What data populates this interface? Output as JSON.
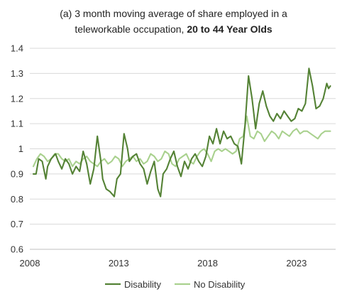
{
  "chart_data": {
    "type": "line",
    "title_line1": "(a) 3 month moving average of share employed in a",
    "title_line2_prefix": "teleworkable occupation, ",
    "title_line2_bold": "20 to 44 Year Olds",
    "xlabel": "",
    "ylabel": "",
    "xlim": [
      2008,
      2025.2
    ],
    "ylim": [
      0.6,
      1.4
    ],
    "x_ticks": [
      "2008",
      "2013",
      "2018",
      "2023"
    ],
    "y_ticks": [
      "0.6",
      "0.7",
      "0.8",
      "0.9",
      "1",
      "1.1",
      "1.2",
      "1.3",
      "1.4"
    ],
    "grid": "horizontal",
    "legend_position": "bottom",
    "series": [
      {
        "name": "Disability",
        "color": "#548235",
        "x": [
          2008.2,
          2008.35,
          2008.5,
          2008.7,
          2008.9,
          2009.0,
          2009.2,
          2009.45,
          2009.6,
          2009.8,
          2010.0,
          2010.2,
          2010.4,
          2010.6,
          2010.8,
          2011.0,
          2011.2,
          2011.4,
          2011.6,
          2011.8,
          2012.0,
          2012.1,
          2012.3,
          2012.5,
          2012.75,
          2012.9,
          2013.1,
          2013.3,
          2013.5,
          2013.6,
          2013.8,
          2014.0,
          2014.2,
          2014.4,
          2014.6,
          2014.8,
          2015.0,
          2015.2,
          2015.35,
          2015.5,
          2015.7,
          2015.9,
          2016.1,
          2016.3,
          2016.5,
          2016.7,
          2016.9,
          2017.1,
          2017.3,
          2017.5,
          2017.7,
          2017.9,
          2018.1,
          2018.3,
          2018.5,
          2018.7,
          2018.9,
          2019.1,
          2019.3,
          2019.5,
          2019.7,
          2019.9,
          2020.1,
          2020.3,
          2020.5,
          2020.7,
          2020.9,
          2021.1,
          2021.3,
          2021.5,
          2021.7,
          2021.9,
          2022.1,
          2022.3,
          2022.5,
          2022.7,
          2022.9,
          2023.1,
          2023.3,
          2023.5,
          2023.7,
          2023.9,
          2024.1,
          2024.3,
          2024.5,
          2024.7,
          2024.8,
          2024.9
        ],
        "values": [
          0.9,
          0.9,
          0.96,
          0.95,
          0.88,
          0.93,
          0.96,
          0.98,
          0.95,
          0.92,
          0.96,
          0.94,
          0.9,
          0.93,
          0.91,
          0.99,
          0.94,
          0.86,
          0.92,
          1.05,
          0.95,
          0.88,
          0.84,
          0.83,
          0.81,
          0.88,
          0.9,
          1.06,
          1.0,
          0.95,
          0.97,
          0.98,
          0.94,
          0.92,
          0.86,
          0.91,
          0.95,
          0.84,
          0.81,
          0.9,
          0.92,
          0.96,
          0.99,
          0.93,
          0.89,
          0.95,
          0.92,
          0.96,
          0.98,
          0.95,
          0.93,
          0.97,
          1.05,
          1.02,
          1.08,
          1.02,
          1.07,
          1.04,
          1.05,
          1.02,
          1.01,
          0.94,
          1.09,
          1.29,
          1.2,
          1.08,
          1.18,
          1.23,
          1.17,
          1.13,
          1.11,
          1.14,
          1.12,
          1.15,
          1.13,
          1.11,
          1.12,
          1.16,
          1.15,
          1.18,
          1.32,
          1.25,
          1.16,
          1.17,
          1.2,
          1.26,
          1.24,
          1.25
        ]
      },
      {
        "name": "No Disability",
        "color": "#a9d18e",
        "x": [
          2008.2,
          2008.4,
          2008.6,
          2008.8,
          2009.0,
          2009.2,
          2009.4,
          2009.6,
          2009.8,
          2010.0,
          2010.2,
          2010.4,
          2010.6,
          2010.8,
          2011.0,
          2011.2,
          2011.4,
          2011.6,
          2011.8,
          2012.0,
          2012.2,
          2012.4,
          2012.6,
          2012.8,
          2013.0,
          2013.2,
          2013.4,
          2013.6,
          2013.8,
          2014.0,
          2014.2,
          2014.4,
          2014.6,
          2014.8,
          2015.0,
          2015.2,
          2015.4,
          2015.6,
          2015.8,
          2016.0,
          2016.2,
          2016.4,
          2016.6,
          2016.8,
          2017.0,
          2017.2,
          2017.4,
          2017.6,
          2017.8,
          2018.0,
          2018.2,
          2018.4,
          2018.6,
          2018.8,
          2019.0,
          2019.2,
          2019.4,
          2019.6,
          2019.8,
          2020.0,
          2020.2,
          2020.4,
          2020.6,
          2020.8,
          2021.0,
          2021.2,
          2021.4,
          2021.6,
          2021.8,
          2022.0,
          2022.2,
          2022.4,
          2022.6,
          2022.8,
          2023.0,
          2023.2,
          2023.4,
          2023.6,
          2023.8,
          2024.0,
          2024.2,
          2024.4,
          2024.6,
          2024.8,
          2024.9
        ],
        "values": [
          0.93,
          0.96,
          0.98,
          0.97,
          0.95,
          0.96,
          0.98,
          0.98,
          0.96,
          0.95,
          0.96,
          0.93,
          0.95,
          0.94,
          0.96,
          0.97,
          0.95,
          0.94,
          0.93,
          0.95,
          0.96,
          0.94,
          0.95,
          0.97,
          0.96,
          0.93,
          0.95,
          0.96,
          0.97,
          0.95,
          0.96,
          0.94,
          0.95,
          0.98,
          0.97,
          0.95,
          0.96,
          0.99,
          0.98,
          0.94,
          0.93,
          0.96,
          0.97,
          0.98,
          0.95,
          0.94,
          0.97,
          0.99,
          1.0,
          0.98,
          0.95,
          0.99,
          1.0,
          0.99,
          1.0,
          0.99,
          0.98,
          0.99,
          1.04,
          1.05,
          1.13,
          1.05,
          1.04,
          1.07,
          1.06,
          1.03,
          1.05,
          1.07,
          1.06,
          1.04,
          1.07,
          1.06,
          1.05,
          1.07,
          1.08,
          1.06,
          1.07,
          1.07,
          1.06,
          1.05,
          1.04,
          1.06,
          1.07,
          1.07,
          1.07
        ]
      }
    ]
  }
}
